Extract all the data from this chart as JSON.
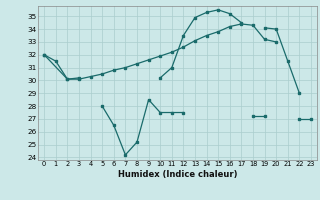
{
  "background_color": "#cce8e8",
  "grid_color": "#aacece",
  "line_color": "#1a6b6b",
  "xlabel": "Humidex (Indice chaleur)",
  "xlim": [
    -0.5,
    23.5
  ],
  "ylim": [
    23.8,
    35.8
  ],
  "ytick_values": [
    24,
    25,
    26,
    27,
    28,
    29,
    30,
    31,
    32,
    33,
    34,
    35
  ],
  "line1": {
    "x": [
      0,
      1,
      2,
      3,
      4,
      5,
      6,
      7,
      8,
      9,
      10,
      11,
      12,
      13,
      14,
      15,
      16,
      17,
      18,
      19,
      20
    ],
    "y": [
      32.0,
      31.5,
      30.1,
      30.1,
      30.3,
      30.5,
      30.8,
      31.0,
      31.3,
      31.6,
      31.9,
      32.2,
      32.6,
      33.1,
      33.5,
      33.8,
      34.2,
      34.4,
      34.3,
      33.2,
      33.0
    ]
  },
  "line2_segments": [
    {
      "x": [
        0,
        2,
        3
      ],
      "y": [
        32.0,
        30.1,
        30.2
      ]
    },
    {
      "x": [
        10,
        11,
        12,
        13,
        14,
        15,
        16,
        17
      ],
      "y": [
        30.2,
        31.0,
        33.5,
        34.9,
        35.3,
        35.5,
        35.2,
        34.5
      ]
    },
    {
      "x": [
        19,
        20,
        21,
        22
      ],
      "y": [
        34.1,
        34.0,
        31.5,
        29.0
      ]
    }
  ],
  "line3_segments": [
    {
      "x": [
        5,
        6,
        7,
        8,
        9,
        10,
        11,
        12
      ],
      "y": [
        28.0,
        26.5,
        24.2,
        25.2,
        28.5,
        27.5,
        27.5,
        27.5
      ]
    },
    {
      "x": [
        18,
        19
      ],
      "y": [
        27.2,
        27.2
      ]
    },
    {
      "x": [
        22,
        23
      ],
      "y": [
        27.0,
        27.0
      ]
    }
  ]
}
